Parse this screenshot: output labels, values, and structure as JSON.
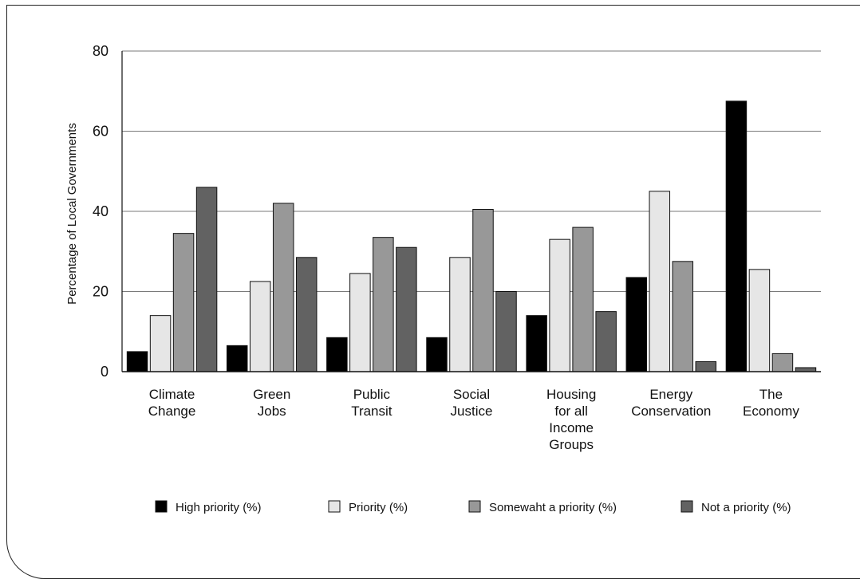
{
  "chart_data": {
    "type": "bar",
    "title": "",
    "xlabel": "",
    "ylabel": "Percentage of Local Governments",
    "ylim": [
      0,
      80
    ],
    "yticks": [
      0,
      20,
      40,
      60,
      80
    ],
    "grid": true,
    "legend_position": "bottom",
    "categories": [
      [
        "Climate",
        "Change"
      ],
      [
        "Green",
        "Jobs"
      ],
      [
        "Public",
        "Transit"
      ],
      [
        "Social",
        "Justice"
      ],
      [
        "Housing",
        "for all",
        "Income",
        "Groups"
      ],
      [
        "Energy",
        "Conservation"
      ],
      [
        "The",
        "Economy"
      ]
    ],
    "series": [
      {
        "name": "High priority (%)",
        "color": "#000000",
        "values": [
          5,
          6.5,
          8.5,
          8.5,
          14,
          23.5,
          67.5
        ]
      },
      {
        "name": "Priority (%)",
        "color": "#e6e6e6",
        "values": [
          14,
          22.5,
          24.5,
          28.5,
          33,
          45,
          25.5
        ]
      },
      {
        "name": "Somewaht a priority (%)",
        "color": "#989898",
        "values": [
          34.5,
          42,
          33.5,
          40.5,
          36,
          27.5,
          4.5
        ]
      },
      {
        "name": "Not a priority (%)",
        "color": "#626262",
        "values": [
          46,
          28.5,
          31,
          20,
          15,
          2.5,
          1
        ]
      }
    ]
  }
}
